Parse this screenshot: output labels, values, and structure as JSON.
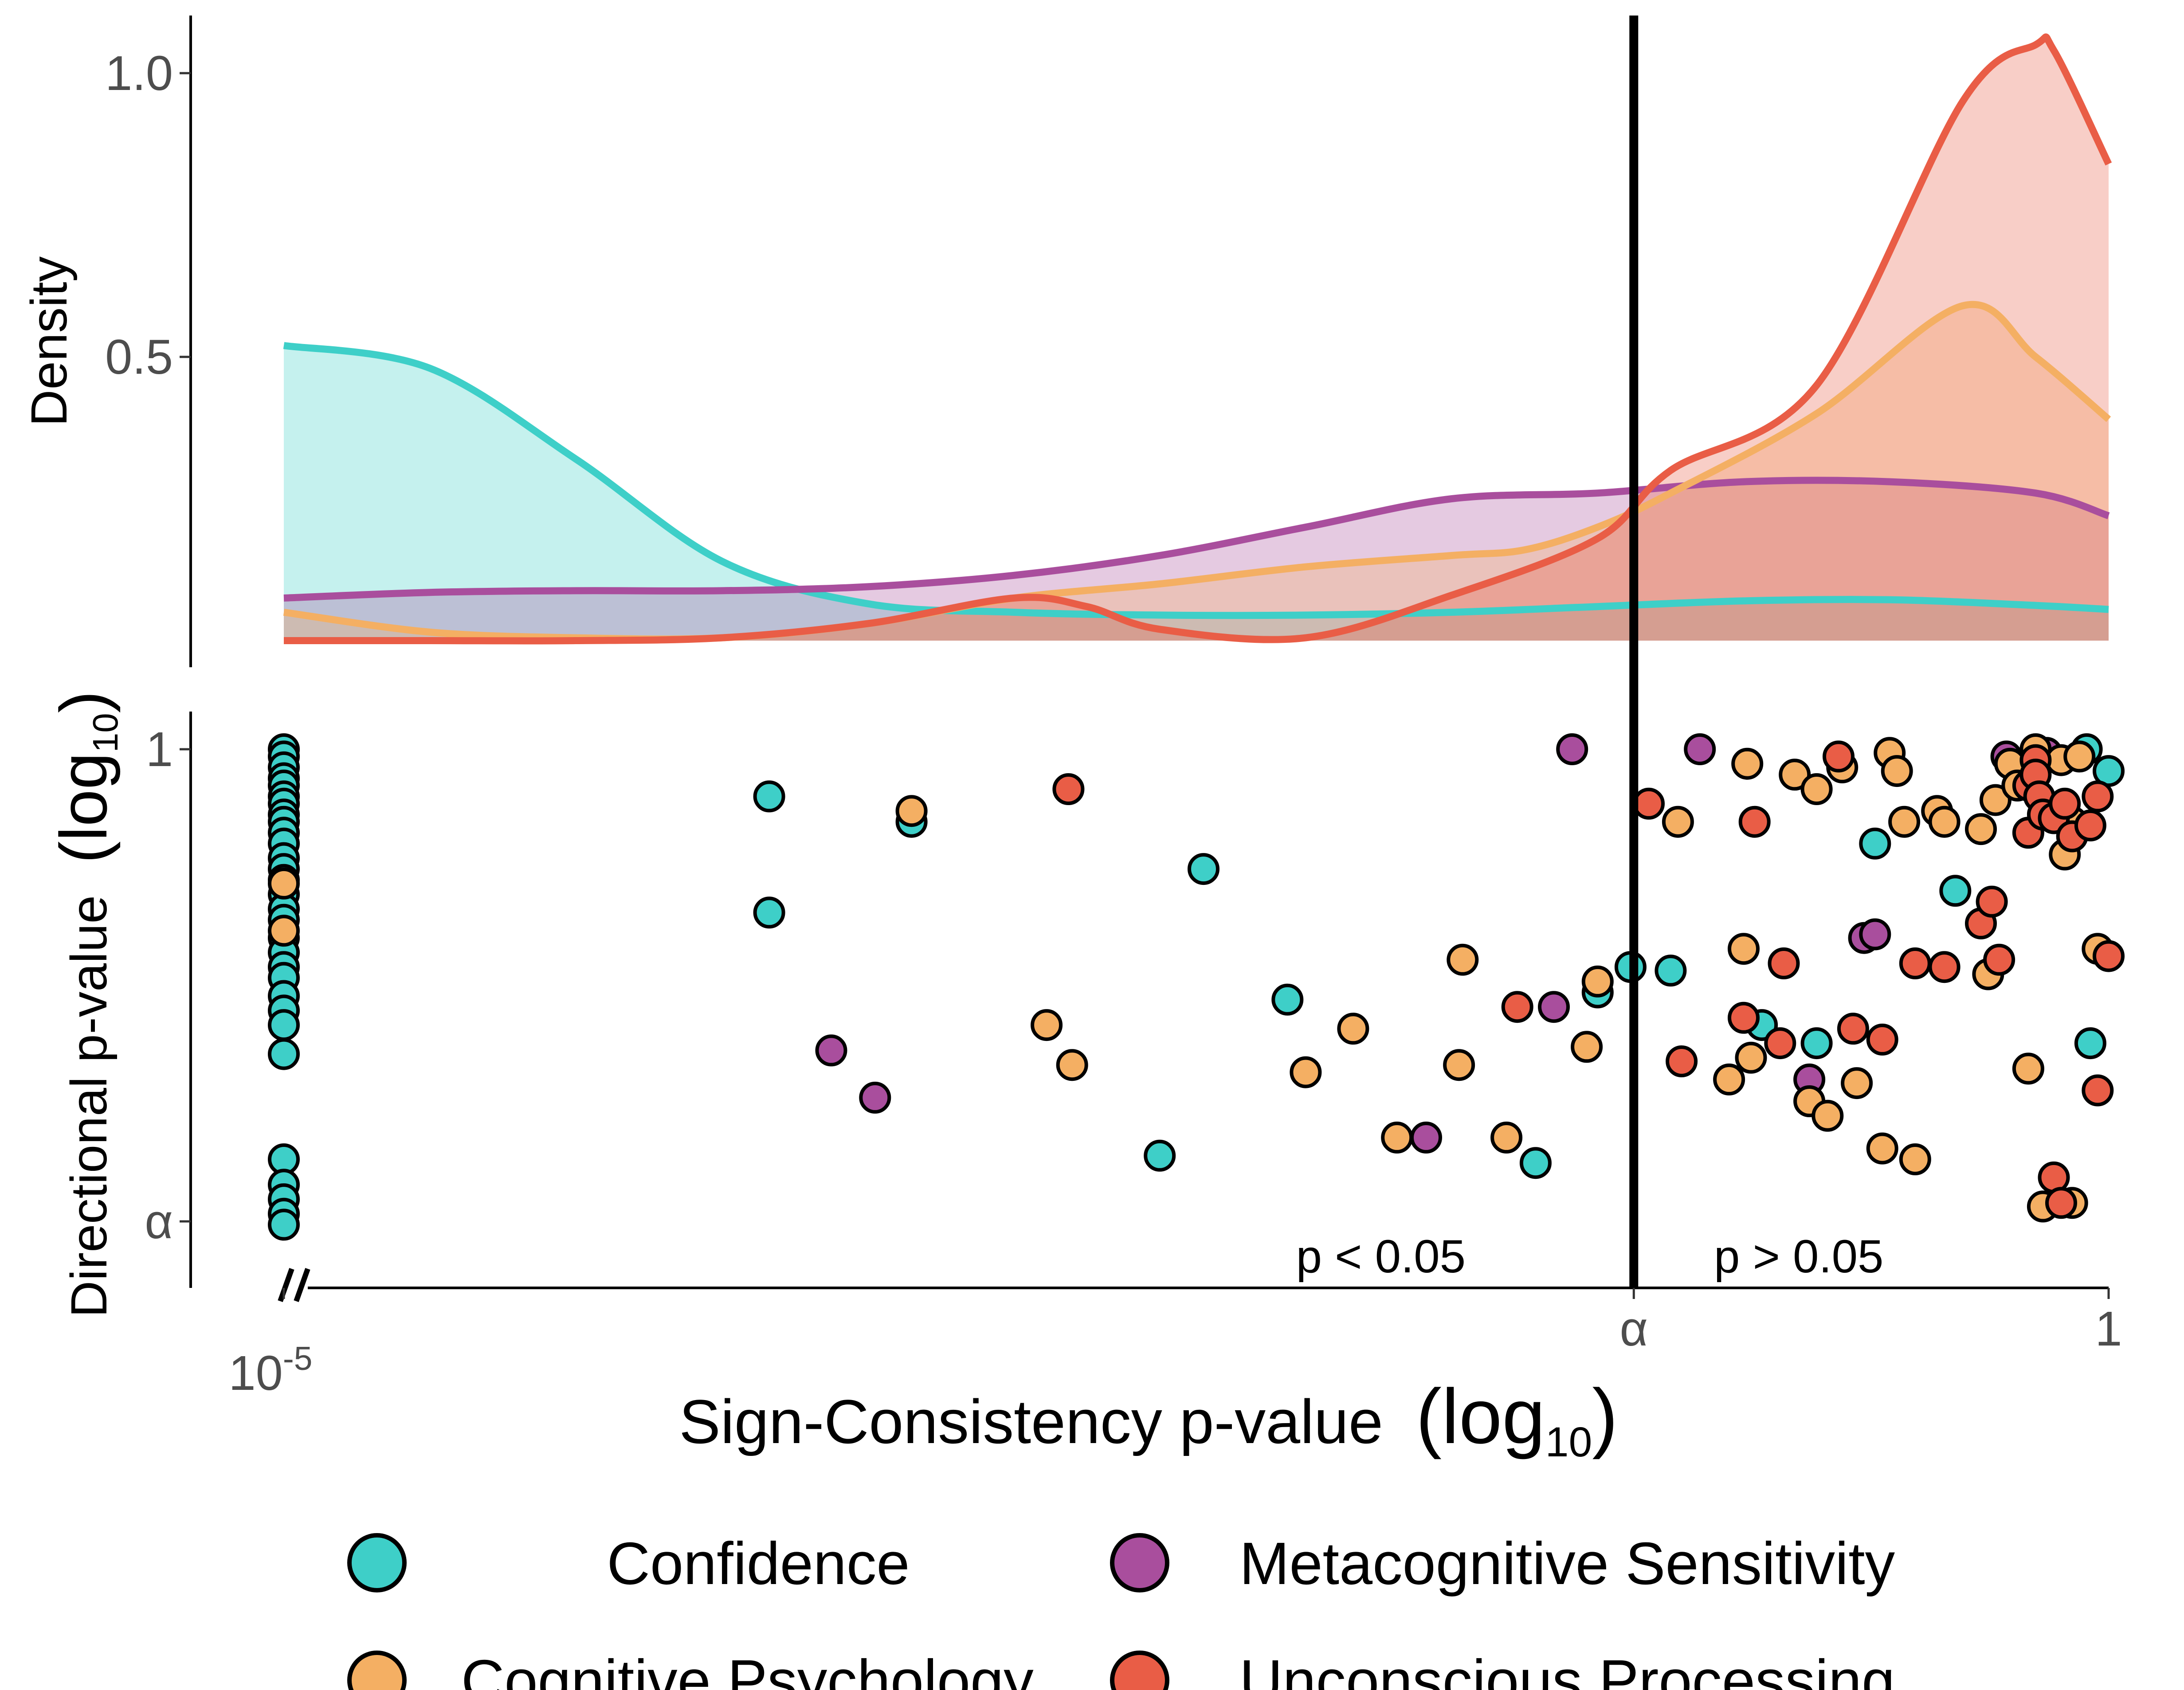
{
  "chart_data": {
    "type": "scatter",
    "x_axis": {
      "title": "Sign-Consistency  p-value",
      "title_log": "(log",
      "title_sub": "10",
      "title_close": ")",
      "scale": "log10",
      "range": [
        -5,
        0
      ],
      "alpha_at": -1.301,
      "tick_labels": [
        {
          "text": "10",
          "sup": "-5",
          "at": -5
        },
        {
          "text": "α",
          "sup": "",
          "at": -1.301
        },
        {
          "text": "1",
          "sup": "",
          "at": 0
        }
      ],
      "axis_break": true
    },
    "density_panel": {
      "ylabel": "Density",
      "ylim": [
        0,
        1.1
      ],
      "tick_labels": [
        {
          "text": "0.5",
          "at": 0.5
        },
        {
          "text": "1.0",
          "at": 1.0
        }
      ],
      "curves": [
        {
          "series": "Confidence",
          "color": "#3ECFC8",
          "x": [
            -5.0,
            -4.6,
            -4.2,
            -3.8,
            -3.4,
            -3.0,
            -2.6,
            -2.2,
            -1.8,
            -1.4,
            -1.0,
            -0.6,
            -0.2,
            0.0
          ],
          "y": [
            0.52,
            0.48,
            0.32,
            0.14,
            0.065,
            0.05,
            0.045,
            0.045,
            0.05,
            0.06,
            0.07,
            0.072,
            0.062,
            0.055
          ]
        },
        {
          "series": "Metacognitive Sensitivity",
          "color": "#A94E9D",
          "x": [
            -5.0,
            -4.6,
            -4.2,
            -3.8,
            -3.4,
            -3.0,
            -2.6,
            -2.2,
            -1.8,
            -1.4,
            -1.0,
            -0.6,
            -0.2,
            0.0
          ],
          "y": [
            0.075,
            0.085,
            0.088,
            0.088,
            0.095,
            0.115,
            0.15,
            0.2,
            0.25,
            0.26,
            0.28,
            0.28,
            0.26,
            0.22
          ]
        },
        {
          "series": "Cognitive Psychology",
          "color": "#F4AF63",
          "x": [
            -5.0,
            -4.6,
            -4.2,
            -3.8,
            -3.4,
            -3.0,
            -2.6,
            -2.2,
            -1.8,
            -1.6,
            -1.4,
            -1.2,
            -0.8,
            -0.4,
            -0.2,
            0.0
          ],
          "y": [
            0.05,
            0.015,
            0.005,
            0.005,
            0.03,
            0.075,
            0.1,
            0.13,
            0.15,
            0.16,
            0.2,
            0.26,
            0.4,
            0.59,
            0.5,
            0.39
          ]
        },
        {
          "series": "Unconscious Processing",
          "color": "#E95D46",
          "x": [
            -5.0,
            -4.6,
            -4.2,
            -3.8,
            -3.4,
            -3.0,
            -2.8,
            -2.6,
            -2.2,
            -1.8,
            -1.4,
            -1.2,
            -0.8,
            -0.4,
            -0.2,
            -0.15,
            0.0
          ],
          "y": [
            0.0,
            0.0,
            0.0,
            0.005,
            0.03,
            0.075,
            0.06,
            0.02,
            0.005,
            0.08,
            0.18,
            0.3,
            0.45,
            0.95,
            1.05,
            1.04,
            0.84
          ]
        }
      ]
    },
    "scatter_panel": {
      "ylabel": "Directional p-value",
      "ylabel_log": "(log",
      "ylabel_sub": "10",
      "ylabel_close": ")",
      "ylim": [
        -1.4,
        0.05
      ],
      "tick_labels": [
        {
          "text": "1",
          "at": 0
        },
        {
          "text": "α",
          "at": -1.301
        }
      ],
      "annotations": [
        "p < 0.05",
        "p > 0.05"
      ],
      "series": [
        {
          "name": "Confidence",
          "color": "#3ECFC8",
          "points": [
            [
              -5.0,
              0.0
            ],
            [
              -5.0,
              -0.02
            ],
            [
              -5.0,
              -0.05
            ],
            [
              -5.0,
              -0.08
            ],
            [
              -5.0,
              -0.1
            ],
            [
              -5.0,
              -0.13
            ],
            [
              -5.0,
              -0.15
            ],
            [
              -5.0,
              -0.18
            ],
            [
              -5.0,
              -0.2
            ],
            [
              -5.0,
              -0.23
            ],
            [
              -5.0,
              -0.26
            ],
            [
              -5.0,
              -0.3
            ],
            [
              -5.0,
              -0.33
            ],
            [
              -5.0,
              -0.36
            ],
            [
              -5.0,
              -0.4
            ],
            [
              -5.0,
              -0.44
            ],
            [
              -5.0,
              -0.47
            ],
            [
              -5.0,
              -0.52
            ],
            [
              -5.0,
              -0.56
            ],
            [
              -5.0,
              -0.6
            ],
            [
              -5.0,
              -0.63
            ],
            [
              -5.0,
              -0.68
            ],
            [
              -5.0,
              -0.72
            ],
            [
              -5.0,
              -0.76
            ],
            [
              -5.0,
              -0.84
            ],
            [
              -5.0,
              -1.13
            ],
            [
              -5.0,
              -1.2
            ],
            [
              -5.0,
              -1.24
            ],
            [
              -5.0,
              -1.28
            ],
            [
              -5.0,
              -1.31
            ],
            [
              -3.67,
              -0.13
            ],
            [
              -3.67,
              -0.45
            ],
            [
              -3.28,
              -0.2
            ],
            [
              -2.6,
              -1.12
            ],
            [
              -2.48,
              -0.33
            ],
            [
              -2.25,
              -0.69
            ],
            [
              -1.57,
              -1.14
            ],
            [
              -1.4,
              -0.67
            ],
            [
              -1.31,
              -0.6
            ],
            [
              -1.2,
              -0.61
            ],
            [
              -0.95,
              -0.76
            ],
            [
              -0.8,
              -0.81
            ],
            [
              -0.64,
              -0.26
            ],
            [
              -0.42,
              -0.39
            ],
            [
              -0.06,
              0.0
            ],
            [
              0.0,
              -0.06
            ],
            [
              -0.05,
              -0.81
            ]
          ]
        },
        {
          "name": "Metacognitive Sensitivity",
          "color": "#A94E9D",
          "points": [
            [
              -3.5,
              -0.83
            ],
            [
              -3.38,
              -0.96
            ],
            [
              -1.87,
              -1.07
            ],
            [
              -1.52,
              -0.71
            ],
            [
              -1.47,
              0.0
            ],
            [
              -1.12,
              0.0
            ],
            [
              -0.67,
              -0.52
            ],
            [
              -0.64,
              -0.51
            ],
            [
              -0.82,
              -0.91
            ],
            [
              -0.28,
              -0.02
            ],
            [
              -0.17,
              -0.01
            ]
          ]
        },
        {
          "name": "Cognitive Psychology",
          "color": "#F4AF63",
          "points": [
            [
              -5.0,
              -0.37
            ],
            [
              -5.0,
              -0.5
            ],
            [
              -3.28,
              -0.17
            ],
            [
              -2.91,
              -0.76
            ],
            [
              -2.84,
              -0.87
            ],
            [
              -2.2,
              -0.89
            ],
            [
              -2.07,
              -0.77
            ],
            [
              -1.95,
              -1.07
            ],
            [
              -1.77,
              -0.58
            ],
            [
              -1.78,
              -0.87
            ],
            [
              -1.65,
              -1.07
            ],
            [
              -1.43,
              -0.82
            ],
            [
              -1.4,
              -0.64
            ],
            [
              -1.18,
              -0.2
            ],
            [
              -1.04,
              -0.91
            ],
            [
              -1.0,
              -0.55
            ],
            [
              -0.98,
              -0.85
            ],
            [
              -0.99,
              -0.04
            ],
            [
              -0.86,
              -0.07
            ],
            [
              -0.8,
              -0.11
            ],
            [
              -0.73,
              -0.05
            ],
            [
              -0.82,
              -0.97
            ],
            [
              -0.77,
              -1.01
            ],
            [
              -0.69,
              -0.92
            ],
            [
              -0.62,
              -1.1
            ],
            [
              -0.53,
              -1.13
            ],
            [
              -0.56,
              -0.2
            ],
            [
              -0.6,
              -0.01
            ],
            [
              -0.58,
              -0.06
            ],
            [
              -0.47,
              -0.17
            ],
            [
              -0.45,
              -0.2
            ],
            [
              -0.35,
              -0.22
            ],
            [
              -0.31,
              -0.14
            ],
            [
              -0.27,
              -0.04
            ],
            [
              -0.25,
              -0.1
            ],
            [
              -0.33,
              -0.62
            ],
            [
              -0.2,
              -0.0
            ],
            [
              -0.13,
              -0.03
            ],
            [
              -0.08,
              -0.02
            ],
            [
              -0.12,
              -0.29
            ],
            [
              -0.22,
              -0.88
            ],
            [
              -0.18,
              -1.26
            ],
            [
              -0.1,
              -1.25
            ],
            [
              -0.03,
              -0.55
            ],
            [
              -0.1,
              -0.2
            ]
          ]
        },
        {
          "name": "Unconscious Processing",
          "color": "#E95D46",
          "points": [
            [
              -2.85,
              -0.11
            ],
            [
              -1.26,
              -0.15
            ],
            [
              -0.97,
              -0.2
            ],
            [
              -0.7,
              -0.77
            ],
            [
              -0.89,
              -0.59
            ],
            [
              -0.9,
              -0.81
            ],
            [
              -0.74,
              -0.02
            ],
            [
              -0.62,
              -0.8
            ],
            [
              -0.53,
              -0.59
            ],
            [
              -0.45,
              -0.6
            ],
            [
              -0.35,
              -0.48
            ],
            [
              -0.32,
              -0.42
            ],
            [
              -0.3,
              -0.58
            ],
            [
              -0.22,
              -0.23
            ],
            [
              -0.22,
              -0.1
            ],
            [
              -0.2,
              -0.03
            ],
            [
              -0.2,
              -0.07
            ],
            [
              -0.19,
              -0.13
            ],
            [
              -0.18,
              -0.18
            ],
            [
              -0.15,
              -0.19
            ],
            [
              -0.12,
              -0.15
            ],
            [
              -0.1,
              -0.24
            ],
            [
              -0.05,
              -0.21
            ],
            [
              -0.03,
              -0.13
            ],
            [
              0.0,
              -0.57
            ],
            [
              -0.03,
              -0.94
            ],
            [
              -0.15,
              -1.18
            ],
            [
              -0.13,
              -1.25
            ],
            [
              -1.62,
              -0.71
            ],
            [
              -1.0,
              -0.74
            ],
            [
              -1.17,
              -0.86
            ]
          ]
        }
      ]
    },
    "legend": {
      "placement": "bottom",
      "items": [
        {
          "name": "Confidence",
          "color": "#3ECFC8"
        },
        {
          "name": "Metacognitive Sensitivity",
          "color": "#A94E9D"
        },
        {
          "name": "Cognitive Psychology",
          "color": "#F4AF63"
        },
        {
          "name": "Unconscious Processing",
          "color": "#E95D46"
        }
      ]
    }
  }
}
